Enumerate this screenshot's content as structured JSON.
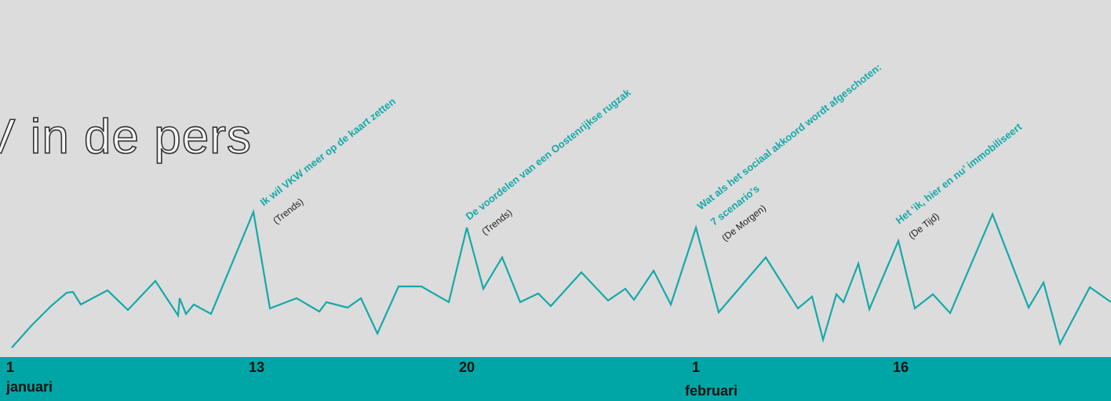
{
  "chart_data": {
    "type": "line",
    "title": "V in de pers",
    "color": "#15a9a9",
    "x": [
      1.5,
      4.0,
      6.5,
      8.5,
      9.3,
      10.3,
      13.7,
      16.3,
      19.8,
      22.7,
      22.9,
      23.7,
      24.7,
      26.9,
      32.3,
      34.4,
      37.8,
      40.7,
      41.6,
      44.3,
      46.0,
      48.1,
      50.8,
      53.7,
      57.2,
      59.5,
      61.6,
      64.0,
      66.3,
      68.6,
      70.2,
      74.1,
      77.5,
      79.7,
      80.8,
      83.3,
      85.5,
      88.7,
      91.6,
      97.6,
      101.7,
      103.5,
      104.9,
      106.6,
      107.5,
      109.4,
      110.8,
      114.5,
      116.6,
      118.9,
      121.1,
      126.5,
      131.1,
      133.0,
      135.1,
      138.9,
      141.6
    ],
    "values": [
      1,
      15,
      27.5,
      36,
      36.5,
      28.5,
      37.5,
      25,
      43.5,
      21.5,
      32.5,
      22.5,
      28.5,
      22.5,
      87.5,
      26,
      32.5,
      24,
      30,
      26.5,
      32.5,
      10,
      40,
      40,
      30,
      77.5,
      38.5,
      58.5,
      30,
      35.5,
      27.5,
      49,
      31,
      38.5,
      31.5,
      50,
      28.5,
      77.5,
      23.5,
      58.5,
      26,
      33.5,
      6,
      35,
      30,
      54.5,
      25.5,
      69,
      26,
      35,
      23,
      86,
      26.5,
      42.5,
      3.5,
      39.5,
      30
    ],
    "xlim": [
      0,
      141.6
    ],
    "ylim": [
      0,
      100
    ],
    "xticks": [
      0.8,
      31.7,
      58.5,
      88.2,
      113.8
    ],
    "xtick_labels": [
      "1",
      "13",
      "20",
      "1",
      "16"
    ],
    "month_labels": [
      "januari",
      "februari"
    ],
    "annotations": [
      {
        "headline": [
          "Ik wil VKW meer op de kaart zetten"
        ],
        "source": "(Trends)"
      },
      {
        "headline": [
          "De voordelen van een Oostenrijkse rugzak"
        ],
        "source": "(Trends)"
      },
      {
        "headline": [
          "Wat als het sociaal akkoord wordt afgeschoten:",
          "7 scenario's"
        ],
        "source": "(De Morgen)"
      },
      {
        "headline": [
          "Het ‘ik, hier en nu’ immobiliseert"
        ],
        "source": "(De Tijd)"
      }
    ]
  }
}
